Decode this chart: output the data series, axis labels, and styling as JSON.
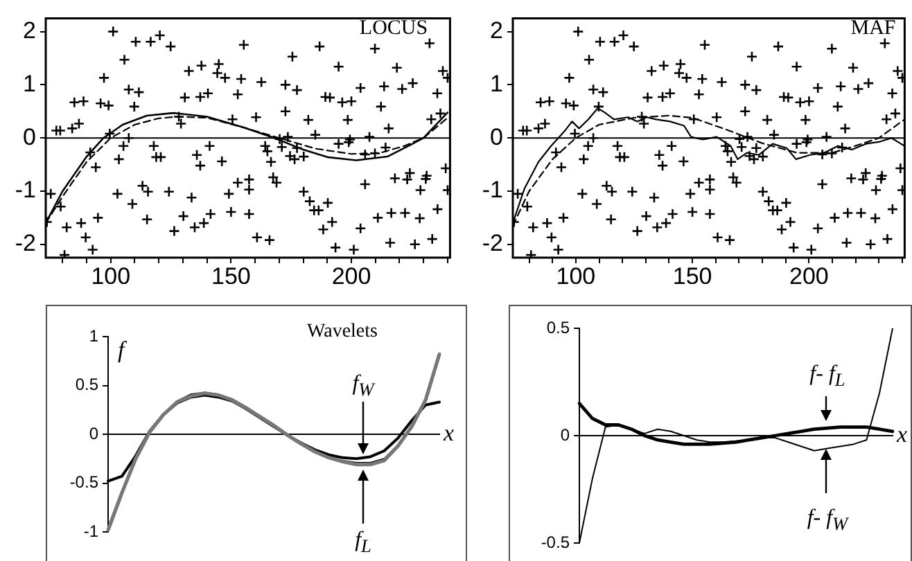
{
  "chart_data": [
    {
      "type": "scatter",
      "annotations": [
        "LOCUS"
      ],
      "xlim": [
        73,
        241
      ],
      "xticks": [
        {
          "value": 80,
          "label": null
        },
        {
          "value": 90,
          "label": null
        },
        100,
        {
          "value": 110,
          "label": null
        },
        {
          "value": 120,
          "label": null
        },
        {
          "value": 130,
          "label": null
        },
        {
          "value": 140,
          "label": null
        },
        150,
        {
          "value": 160,
          "label": null
        },
        {
          "value": 170,
          "label": null
        },
        {
          "value": 180,
          "label": null
        },
        {
          "value": 190,
          "label": null
        },
        200,
        {
          "value": 210,
          "label": null
        },
        {
          "value": 220,
          "label": null
        },
        {
          "value": 230,
          "label": null
        },
        {
          "value": 240,
          "label": null
        }
      ],
      "ylim": [
        -2.25,
        2.25
      ],
      "yticks": [
        -2,
        -1,
        0,
        1,
        2
      ],
      "ref_lines": [
        {
          "axis": "y",
          "value": 0
        }
      ],
      "series": [
        {
          "type": "scatter",
          "marker": "cross",
          "color": "#000000",
          "x": [
            101,
            110.4,
            116.6,
            120.4,
            124.9,
            105.7,
            97.2,
            84.9,
            88.7,
            95.8,
            99.1,
            107.5,
            111.7,
            109.8,
            77.4,
            79,
            84,
            86.8,
            99.6,
            107.5,
            105.3,
            103.4,
            91.5,
            93.8,
            75.1,
            79.2,
            73.5,
            81.7,
            87.7,
            89.6,
            92.5,
            94.7,
            80.8,
            102.8,
            109,
            113.2,
            115.5,
            115.1,
            124.2,
            117.9,
            118.9,
            120.8,
            126.4,
            130.2,
            134.9,
            138.7,
            141.5,
            133.6,
            128.3,
            129.2,
            130.8,
            132.5,
            137.7,
            144.9,
            144.3,
            147.5,
            137.2,
            140.4,
            152.8,
            154.2,
            155.3,
            135.8,
            137.2,
            141.1,
            146.2,
            149.1,
            150,
            150.6,
            160.4,
            162.6,
            157.5,
            160.8,
            166,
            152.8,
            157.5,
            157.5,
            164.2,
            165.1,
            166.6,
            167.5,
            168.9,
            170.2,
            171.1,
            173.6,
            174.5,
            176.4,
            177.4,
            180.2,
            172.6,
            172.6,
            177.4,
            175.5,
            186.8,
            182.1,
            185,
            180.2,
            182.7,
            184.5,
            186.4,
            190.2,
            188.3,
            192,
            193.4,
            201,
            203.8,
            205.7,
            189.2,
            191.1,
            196.2,
            200,
            203.8,
            194.7,
            198.5,
            199.4,
            194.7,
            198.9,
            207.5,
            205.7,
            209.8,
            214.2,
            209.8,
            213.6,
            212.3,
            215.5,
            218.9,
            221.1,
            225.5,
            232.5,
            211,
            216.6,
            222.3,
            218.1,
            223.2,
            224.3,
            228.4,
            230.9,
            231.3,
            216.1,
            226.4,
            233.6,
            235.8,
            228.7,
            240,
            239.2,
            233.2,
            237,
            235.7,
            238,
            240
          ],
          "values": [
            2.0,
            1.81,
            1.81,
            1.93,
            1.72,
            1.47,
            1.13,
            0.67,
            0.69,
            0.65,
            0.61,
            0.91,
            0.86,
            0.59,
            0.14,
            0.14,
            0.18,
            0.27,
            0.08,
            0,
            -0.15,
            -0.4,
            -0.27,
            -0.55,
            -1.05,
            -1.29,
            -1.58,
            -1.68,
            -1.6,
            -1.87,
            -2.1,
            -1.5,
            -2.2,
            -1.05,
            -1.24,
            -0.9,
            -1.01,
            -1.53,
            -1.01,
            -0.15,
            -0.36,
            -0.36,
            -1.75,
            -1.47,
            -1.68,
            -1.6,
            -1.43,
            -1.12,
            0.4,
            0.27,
            0.76,
            1.26,
            1.36,
            1.39,
            1.22,
            1.13,
            0.77,
            0.84,
            0.82,
            1.11,
            1.75,
            -0.32,
            -0.52,
            -0.15,
            -0.44,
            -1.05,
            -1.39,
            0.35,
            0.39,
            1.05,
            -1.43,
            -1.87,
            -1.92,
            -0.84,
            -0.78,
            -0.97,
            -0.15,
            -0.25,
            -0.45,
            -0.74,
            -0.84,
            -0.02,
            -0.17,
            0.02,
            -0.34,
            -0.4,
            -0.19,
            -0.35,
            0.5,
            1.0,
            0.9,
            1.53,
            1.72,
            0.34,
            0.06,
            -1.01,
            -1.19,
            -1.36,
            -1.36,
            -1.22,
            -1.72,
            -1.58,
            -2.06,
            -2.1,
            -1.7,
            -0.87,
            0.77,
            0.76,
            0.67,
            0.69,
            0.94,
            1.34,
            0.34,
            -0.03,
            -0.11,
            -0.08,
            0.02,
            -0.31,
            -0.29,
            -0.18,
            1.68,
            0.97,
            0.59,
            0.18,
            1.32,
            0.92,
            1.03,
            1.78,
            -1.5,
            -1.41,
            -1.41,
            -0.76,
            -0.78,
            -0.66,
            -1.51,
            -0.77,
            -0.71,
            -1.97,
            -2.0,
            -1.9,
            -1.34,
            -0.98,
            -0.98,
            -0.57,
            0.35,
            0.46,
            0.84,
            1.26,
            1.13
          ]
        },
        {
          "type": "line",
          "line_style": "solid",
          "color": "#000000",
          "x": [
            73,
            80,
            90,
            97,
            105,
            115,
            126,
            140,
            155,
            168,
            180,
            190,
            202,
            215,
            225,
            230,
            240
          ],
          "values": [
            -1.6,
            -1.0,
            -0.35,
            0,
            0.25,
            0.42,
            0.47,
            0.4,
            0.2,
            0,
            -0.22,
            -0.36,
            -0.42,
            -0.35,
            -0.12,
            0,
            0.48
          ]
        },
        {
          "type": "line",
          "line_style": "dashed",
          "color": "#000000",
          "x": [
            73,
            80,
            90,
            100,
            110,
            120,
            128,
            140,
            155,
            170,
            185,
            200,
            212,
            222,
            230,
            240
          ],
          "values": [
            -1.6,
            -1.1,
            -0.45,
            0,
            0.25,
            0.37,
            0.4,
            0.38,
            0.2,
            0,
            -0.2,
            -0.3,
            -0.28,
            -0.15,
            0,
            0.38
          ]
        }
      ]
    },
    {
      "type": "scatter",
      "annotations": [
        "MAF"
      ],
      "xlim": [
        73,
        241
      ],
      "xticks": [
        {
          "value": 80,
          "label": null
        },
        {
          "value": 90,
          "label": null
        },
        100,
        {
          "value": 110,
          "label": null
        },
        {
          "value": 120,
          "label": null
        },
        {
          "value": 130,
          "label": null
        },
        {
          "value": 140,
          "label": null
        },
        150,
        {
          "value": 160,
          "label": null
        },
        {
          "value": 170,
          "label": null
        },
        {
          "value": 180,
          "label": null
        },
        {
          "value": 190,
          "label": null
        },
        200,
        {
          "value": 210,
          "label": null
        },
        {
          "value": 220,
          "label": null
        },
        {
          "value": 230,
          "label": null
        },
        {
          "value": 240,
          "label": null
        }
      ],
      "ylim": [
        -2.25,
        2.25
      ],
      "yticks": [
        -2,
        -1,
        0,
        1,
        2
      ],
      "ref_lines": [
        {
          "axis": "y",
          "value": 0
        }
      ],
      "series": [
        {
          "type": "scatter",
          "marker": "cross",
          "color": "#000000",
          "x": [
            101,
            110.4,
            116.6,
            120.4,
            124.9,
            105.7,
            97.2,
            84.9,
            88.7,
            95.8,
            99.1,
            107.5,
            111.7,
            109.8,
            77.4,
            79,
            84,
            86.8,
            99.6,
            107.5,
            105.3,
            103.4,
            91.5,
            93.8,
            75.1,
            79.2,
            73.5,
            81.7,
            87.7,
            89.6,
            92.5,
            94.7,
            80.8,
            102.8,
            109,
            113.2,
            115.5,
            115.1,
            124.2,
            117.9,
            118.9,
            120.8,
            126.4,
            130.2,
            134.9,
            138.7,
            141.5,
            133.6,
            128.3,
            129.2,
            130.8,
            132.5,
            137.7,
            144.9,
            144.3,
            147.5,
            137.2,
            140.4,
            152.8,
            154.2,
            155.3,
            135.8,
            137.2,
            141.1,
            146.2,
            149.1,
            150,
            150.6,
            160.4,
            162.6,
            157.5,
            160.8,
            166,
            152.8,
            157.5,
            157.5,
            164.2,
            165.1,
            166.6,
            167.5,
            168.9,
            170.2,
            171.1,
            173.6,
            174.5,
            176.4,
            177.4,
            180.2,
            172.6,
            172.6,
            177.4,
            175.5,
            186.8,
            182.1,
            185,
            180.2,
            182.7,
            184.5,
            186.4,
            190.2,
            188.3,
            192,
            193.4,
            201,
            203.8,
            205.7,
            189.2,
            191.1,
            196.2,
            200,
            203.8,
            194.7,
            198.5,
            199.4,
            194.7,
            198.9,
            207.5,
            205.7,
            209.8,
            214.2,
            209.8,
            213.6,
            212.3,
            215.5,
            218.9,
            221.1,
            225.5,
            232.5,
            211,
            216.6,
            222.3,
            218.1,
            223.2,
            224.3,
            228.4,
            230.9,
            231.3,
            216.1,
            226.4,
            233.6,
            235.8,
            228.7,
            240,
            239.2,
            233.2,
            237,
            235.7,
            238,
            240
          ],
          "values": [
            2.0,
            1.81,
            1.81,
            1.93,
            1.72,
            1.47,
            1.13,
            0.67,
            0.69,
            0.65,
            0.61,
            0.91,
            0.86,
            0.59,
            0.14,
            0.14,
            0.18,
            0.27,
            0.08,
            0,
            -0.15,
            -0.4,
            -0.27,
            -0.55,
            -1.05,
            -1.29,
            -1.58,
            -1.68,
            -1.6,
            -1.87,
            -2.1,
            -1.5,
            -2.2,
            -1.05,
            -1.24,
            -0.9,
            -1.01,
            -1.53,
            -1.01,
            -0.15,
            -0.36,
            -0.36,
            -1.75,
            -1.47,
            -1.68,
            -1.6,
            -1.43,
            -1.12,
            0.4,
            0.27,
            0.76,
            1.26,
            1.36,
            1.39,
            1.22,
            1.13,
            0.77,
            0.84,
            0.82,
            1.11,
            1.75,
            -0.32,
            -0.52,
            -0.15,
            -0.44,
            -1.05,
            -1.39,
            0.35,
            0.39,
            1.05,
            -1.43,
            -1.87,
            -1.92,
            -0.84,
            -0.78,
            -0.97,
            -0.15,
            -0.25,
            -0.45,
            -0.74,
            -0.84,
            -0.02,
            -0.17,
            0.02,
            -0.34,
            -0.4,
            -0.19,
            -0.35,
            0.5,
            1.0,
            0.9,
            1.53,
            1.72,
            0.34,
            0.06,
            -1.01,
            -1.19,
            -1.36,
            -1.36,
            -1.22,
            -1.72,
            -1.58,
            -2.06,
            -2.1,
            -1.7,
            -0.87,
            0.77,
            0.76,
            0.67,
            0.69,
            0.94,
            1.34,
            0.34,
            -0.03,
            -0.11,
            -0.08,
            0.02,
            -0.31,
            -0.29,
            -0.18,
            1.68,
            0.97,
            0.59,
            0.18,
            1.32,
            0.92,
            1.03,
            1.78,
            -1.5,
            -1.41,
            -1.41,
            -0.76,
            -0.78,
            -0.66,
            -1.51,
            -0.77,
            -0.71,
            -1.97,
            -2.0,
            -1.9,
            -1.34,
            -0.98,
            -0.98,
            -0.57,
            0.35,
            0.46,
            0.84,
            1.26,
            1.13
          ]
        },
        {
          "type": "line",
          "line_style": "solid",
          "color": "#000000",
          "x": [
            73,
            78,
            84,
            89.4,
            95.4,
            98.4,
            101.4,
            105.4,
            109.4,
            112.4,
            116.4,
            122.4,
            126.4,
            130.4,
            134.4,
            140.4,
            146.4,
            149.4,
            154.4,
            160.4,
            166.4,
            169.4,
            173.4,
            178.4,
            184.4,
            190.4,
            194.4,
            200.4,
            206.4,
            212.4,
            218.4,
            224.4,
            230.4,
            235.4,
            239.4,
            241
          ],
          "values": [
            -1.6,
            -0.95,
            -0.45,
            -0.15,
            0.14,
            0.31,
            0.18,
            0.35,
            0.56,
            0.48,
            0.35,
            0.39,
            0.31,
            0.39,
            0.35,
            0.31,
            0.23,
            0.02,
            -0.03,
            0.02,
            -0.15,
            -0.4,
            -0.28,
            -0.32,
            -0.11,
            -0.19,
            -0.4,
            -0.32,
            -0.28,
            -0.15,
            -0.22,
            -0.11,
            -0.07,
            0,
            -0.11,
            -0.15
          ]
        },
        {
          "type": "line",
          "line_style": "dashed",
          "color": "#000000",
          "x": [
            73,
            80,
            90,
            100,
            110,
            125,
            140,
            150,
            165,
            180,
            195,
            210,
            222,
            230,
            241
          ],
          "values": [
            -1.65,
            -1.0,
            -0.4,
            0,
            0.25,
            0.38,
            0.42,
            0.38,
            0.15,
            -0.1,
            -0.28,
            -0.28,
            -0.12,
            0,
            0.35
          ]
        }
      ]
    },
    {
      "type": "line",
      "tick_labels": "y",
      "xlabel": "x",
      "ylabel": "f",
      "annotations": [
        "Wavelets",
        "f$_{W}$",
        "f$_{L}$"
      ],
      "categories": [
        null,
        null,
        null,
        null,
        null,
        null,
        null,
        null,
        null,
        null,
        null,
        null,
        null,
        null,
        null,
        null,
        null,
        null,
        null,
        null,
        null,
        null,
        null,
        null,
        null
      ],
      "ylim": [
        -1,
        1
      ],
      "yticks": [
        -1,
        -0.5,
        0,
        0.5,
        1
      ],
      "series": [
        {
          "color": "#777777",
          "values": [
            -0.98,
            -0.6,
            -0.25,
            0.02,
            0.2,
            0.33,
            0.39,
            0.42,
            0.4,
            0.35,
            0.27,
            0.18,
            0.09,
            -0.01,
            -0.1,
            -0.18,
            -0.24,
            -0.28,
            -0.31,
            -0.31,
            -0.27,
            -0.12,
            0.08,
            0.35,
            0.82
          ]
        },
        {
          "color": "#000000",
          "values": [
            -0.95,
            -0.58,
            -0.24,
            0.02,
            0.21,
            0.34,
            0.41,
            0.43,
            0.41,
            0.36,
            0.28,
            0.19,
            0.1,
            0,
            -0.09,
            -0.17,
            -0.23,
            -0.27,
            -0.29,
            -0.29,
            -0.25,
            -0.11,
            0.09,
            0.36,
            0.8
          ]
        },
        {
          "color": "#000000",
          "values": [
            -0.48,
            -0.43,
            -0.22,
            0.03,
            0.2,
            0.32,
            0.38,
            0.4,
            0.38,
            0.34,
            0.26,
            0.17,
            0.08,
            -0.01,
            -0.09,
            -0.16,
            -0.21,
            -0.24,
            -0.25,
            -0.23,
            -0.17,
            -0.04,
            0.14,
            0.3,
            0.33
          ]
        }
      ]
    },
    {
      "type": "line",
      "tick_labels": "y",
      "xlabel": "x",
      "annotations": [
        "f- f$_{L}$",
        "f- f$_{W}$"
      ],
      "categories": [
        null,
        null,
        null,
        null,
        null,
        null,
        null,
        null,
        null,
        null,
        null,
        null,
        null,
        null,
        null,
        null,
        null,
        null,
        null,
        null,
        null,
        null,
        null,
        null,
        null
      ],
      "ylim": [
        -0.5,
        0.5
      ],
      "yticks": [
        -0.5,
        0,
        0.5
      ],
      "series": [
        {
          "color": "#000000",
          "values": [
            0.15,
            0.08,
            0.05,
            0.05,
            0.03,
            0.0,
            -0.02,
            -0.03,
            -0.04,
            -0.04,
            -0.04,
            -0.035,
            -0.03,
            -0.02,
            -0.01,
            0.0,
            0.01,
            0.02,
            0.03,
            0.035,
            0.04,
            0.04,
            0.04,
            0.03,
            0.02
          ]
        },
        {
          "color": "#000000",
          "values": [
            -0.5,
            -0.2,
            0.04,
            0.05,
            0.03,
            0.01,
            0.03,
            0.02,
            0.0,
            -0.02,
            -0.03,
            -0.03,
            -0.025,
            -0.02,
            -0.01,
            -0.01,
            -0.03,
            -0.05,
            -0.07,
            -0.06,
            -0.05,
            -0.04,
            -0.02,
            0.2,
            0.5
          ]
        }
      ]
    }
  ]
}
